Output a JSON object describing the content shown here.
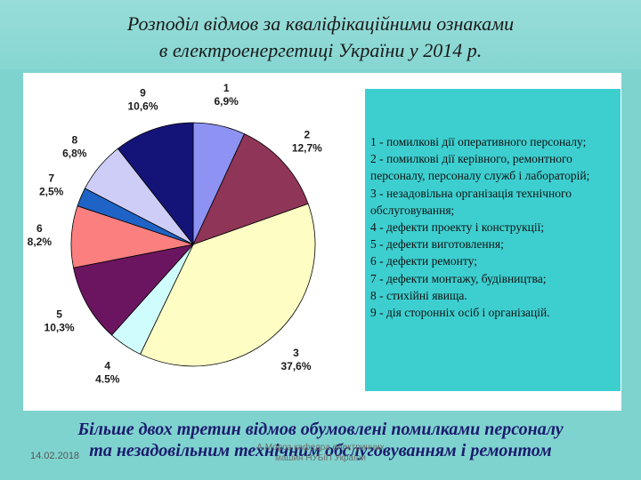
{
  "title": {
    "line1": "Розподіл відмов за кваліфікаційними ознаками",
    "line2": "в електроенергетиці України у 2014 р."
  },
  "chart_data": {
    "type": "pie",
    "title": "",
    "slices": [
      {
        "label": "1",
        "value": 6.9,
        "display": "6,9%",
        "color": "#8e92f2"
      },
      {
        "label": "2",
        "value": 12.7,
        "display": "12,7%",
        "color": "#8e3558"
      },
      {
        "label": "3",
        "value": 37.6,
        "display": "37,6%",
        "color": "#fdfdc4"
      },
      {
        "label": "4",
        "value": 4.5,
        "display": "4.5%",
        "color": "#cffdfd"
      },
      {
        "label": "5",
        "value": 10.3,
        "display": "10,3%",
        "color": "#6b1560"
      },
      {
        "label": "6",
        "value": 8.2,
        "display": "8,2%",
        "color": "#fb7f7f"
      },
      {
        "label": "7",
        "value": 2.5,
        "display": "2,5%",
        "color": "#1f63c6"
      },
      {
        "label": "8",
        "value": 6.8,
        "display": "6,8%",
        "color": "#cecdf8"
      },
      {
        "label": "9",
        "value": 10.6,
        "display": "10,6%",
        "color": "#141478"
      }
    ],
    "legend": [
      "1 - помилкові дії оперативного персоналу;",
      "2 - помилкові дії керівного, ремонтного персоналу, персоналу служб і лабораторій;",
      "3 - незадовільна організація технічного обслуговування;",
      "4 - дефекти проекту і конструкції;",
      "5 - дефекти виготовлення;",
      "6 - дефекти ремонту;",
      "7 - дефекти монтажу, будівництва;",
      "8 - стихійні явища.",
      "9 - дія сторонніх осіб і організацій."
    ],
    "legend_placement": "right"
  },
  "conclusion": {
    "line1": "Більше двох третин відмов обумовлені помилками персоналу",
    "line2": "та незадовільним технічним обслуговуванням і ремонтом"
  },
  "footer": {
    "date": "14.02.2018",
    "org_line1": "А.Мороз кафедра електричних",
    "org_line2": "машин НУБіП України"
  }
}
